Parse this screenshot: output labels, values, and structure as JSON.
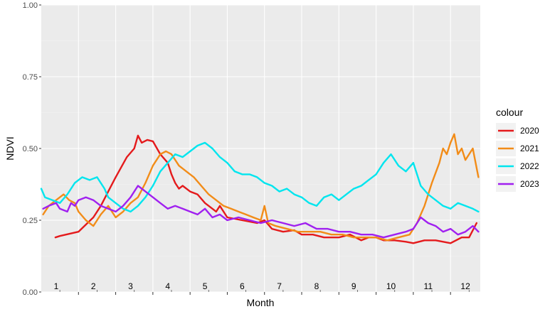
{
  "chart_data": {
    "type": "line",
    "title": "",
    "xlabel": "Month",
    "ylabel": "NDVI",
    "xlim": [
      1,
      12.8
    ],
    "ylim": [
      0,
      1
    ],
    "yticks": [
      0.0,
      0.25,
      0.5,
      0.75,
      1.0
    ],
    "ytick_labels": [
      "0.00",
      "0.25",
      "0.50",
      "0.75",
      "1.00"
    ],
    "month_labels": [
      "1",
      "2",
      "3",
      "4",
      "5",
      "6",
      "7",
      "8",
      "9",
      "10",
      "11",
      "12"
    ],
    "grid": true,
    "legend": {
      "title": "colour",
      "position": "right"
    },
    "series": [
      {
        "name": "2020",
        "color": "#e41a1c",
        "x": [
          1.38,
          1.5,
          2.0,
          2.4,
          2.6,
          2.8,
          3.0,
          3.3,
          3.5,
          3.6,
          3.7,
          3.85,
          4.0,
          4.2,
          4.4,
          4.5,
          4.6,
          4.7,
          4.8,
          5.0,
          5.2,
          5.4,
          5.6,
          5.7,
          5.8,
          6.0,
          6.2,
          6.4,
          6.6,
          6.8,
          7.0,
          7.2,
          7.5,
          7.8,
          8.0,
          8.3,
          8.6,
          9.0,
          9.3,
          9.6,
          9.8,
          10.0,
          10.2,
          10.5,
          10.8,
          11.0,
          11.3,
          11.6,
          12.0,
          12.3,
          12.5,
          12.7
        ],
        "y": [
          0.19,
          0.195,
          0.21,
          0.26,
          0.3,
          0.35,
          0.4,
          0.47,
          0.5,
          0.545,
          0.52,
          0.53,
          0.525,
          0.48,
          0.45,
          0.41,
          0.38,
          0.36,
          0.37,
          0.35,
          0.34,
          0.31,
          0.29,
          0.28,
          0.3,
          0.26,
          0.255,
          0.25,
          0.245,
          0.24,
          0.25,
          0.22,
          0.21,
          0.215,
          0.2,
          0.2,
          0.19,
          0.19,
          0.2,
          0.18,
          0.19,
          0.19,
          0.18,
          0.18,
          0.175,
          0.17,
          0.18,
          0.18,
          0.17,
          0.19,
          0.19,
          0.24
        ]
      },
      {
        "name": "2021",
        "color": "#f28c18",
        "x": [
          1.05,
          1.2,
          1.4,
          1.6,
          1.75,
          1.9,
          2.0,
          2.2,
          2.4,
          2.6,
          2.8,
          3.0,
          3.2,
          3.4,
          3.6,
          3.8,
          4.0,
          4.2,
          4.35,
          4.5,
          4.7,
          4.9,
          5.1,
          5.3,
          5.5,
          5.7,
          5.9,
          6.1,
          6.3,
          6.5,
          6.7,
          6.9,
          7.0,
          7.1,
          7.3,
          7.6,
          7.9,
          8.2,
          8.5,
          8.8,
          9.1,
          9.4,
          9.7,
          10.0,
          10.3,
          10.6,
          10.9,
          11.1,
          11.3,
          11.5,
          11.7,
          11.8,
          11.9,
          12.0,
          12.1,
          12.2,
          12.3,
          12.4,
          12.5,
          12.6,
          12.75
        ],
        "y": [
          0.27,
          0.3,
          0.32,
          0.34,
          0.32,
          0.31,
          0.28,
          0.25,
          0.23,
          0.27,
          0.3,
          0.26,
          0.28,
          0.31,
          0.33,
          0.38,
          0.44,
          0.48,
          0.49,
          0.48,
          0.44,
          0.42,
          0.4,
          0.37,
          0.34,
          0.32,
          0.3,
          0.29,
          0.28,
          0.27,
          0.26,
          0.25,
          0.3,
          0.24,
          0.23,
          0.22,
          0.21,
          0.21,
          0.21,
          0.2,
          0.2,
          0.19,
          0.19,
          0.19,
          0.18,
          0.19,
          0.2,
          0.24,
          0.3,
          0.38,
          0.45,
          0.5,
          0.48,
          0.52,
          0.55,
          0.48,
          0.5,
          0.46,
          0.48,
          0.5,
          0.4
        ]
      },
      {
        "name": "2022",
        "color": "#00e5ee",
        "x": [
          1.0,
          1.1,
          1.3,
          1.5,
          1.7,
          1.9,
          2.1,
          2.3,
          2.5,
          2.7,
          2.8,
          3.0,
          3.2,
          3.4,
          3.6,
          3.8,
          4.0,
          4.2,
          4.4,
          4.6,
          4.8,
          5.0,
          5.2,
          5.4,
          5.6,
          5.8,
          6.0,
          6.2,
          6.4,
          6.6,
          6.8,
          7.0,
          7.2,
          7.4,
          7.6,
          7.8,
          8.0,
          8.2,
          8.4,
          8.6,
          8.8,
          9.0,
          9.2,
          9.4,
          9.6,
          9.8,
          10.0,
          10.2,
          10.4,
          10.6,
          10.8,
          11.0,
          11.2,
          11.4,
          11.6,
          11.8,
          12.0,
          12.2,
          12.4,
          12.6,
          12.75
        ],
        "y": [
          0.36,
          0.33,
          0.32,
          0.31,
          0.34,
          0.38,
          0.4,
          0.39,
          0.4,
          0.36,
          0.33,
          0.31,
          0.29,
          0.28,
          0.3,
          0.33,
          0.37,
          0.42,
          0.45,
          0.48,
          0.47,
          0.49,
          0.51,
          0.52,
          0.5,
          0.47,
          0.45,
          0.42,
          0.41,
          0.41,
          0.4,
          0.38,
          0.37,
          0.35,
          0.36,
          0.34,
          0.33,
          0.31,
          0.3,
          0.33,
          0.34,
          0.32,
          0.34,
          0.36,
          0.37,
          0.39,
          0.41,
          0.45,
          0.48,
          0.44,
          0.42,
          0.45,
          0.37,
          0.34,
          0.32,
          0.3,
          0.29,
          0.31,
          0.3,
          0.29,
          0.28
        ]
      },
      {
        "name": "2023",
        "color": "#a020f0",
        "x": [
          1.05,
          1.2,
          1.4,
          1.5,
          1.7,
          1.8,
          1.9,
          2.0,
          2.2,
          2.4,
          2.6,
          2.8,
          3.0,
          3.2,
          3.4,
          3.6,
          3.8,
          4.0,
          4.2,
          4.4,
          4.6,
          4.8,
          5.0,
          5.2,
          5.4,
          5.6,
          5.8,
          6.0,
          6.3,
          6.6,
          6.9,
          7.2,
          7.5,
          7.8,
          8.1,
          8.4,
          8.7,
          9.0,
          9.3,
          9.6,
          9.9,
          10.2,
          10.5,
          10.8,
          11.0,
          11.2,
          11.4,
          11.6,
          11.8,
          12.0,
          12.2,
          12.4,
          12.6,
          12.75
        ],
        "y": [
          0.29,
          0.3,
          0.31,
          0.29,
          0.28,
          0.31,
          0.3,
          0.32,
          0.33,
          0.32,
          0.3,
          0.29,
          0.28,
          0.3,
          0.33,
          0.37,
          0.35,
          0.33,
          0.31,
          0.29,
          0.3,
          0.29,
          0.28,
          0.27,
          0.29,
          0.26,
          0.27,
          0.25,
          0.26,
          0.25,
          0.24,
          0.25,
          0.24,
          0.23,
          0.24,
          0.22,
          0.22,
          0.21,
          0.21,
          0.2,
          0.2,
          0.19,
          0.2,
          0.21,
          0.22,
          0.26,
          0.24,
          0.23,
          0.21,
          0.22,
          0.2,
          0.21,
          0.23,
          0.21
        ]
      }
    ]
  }
}
